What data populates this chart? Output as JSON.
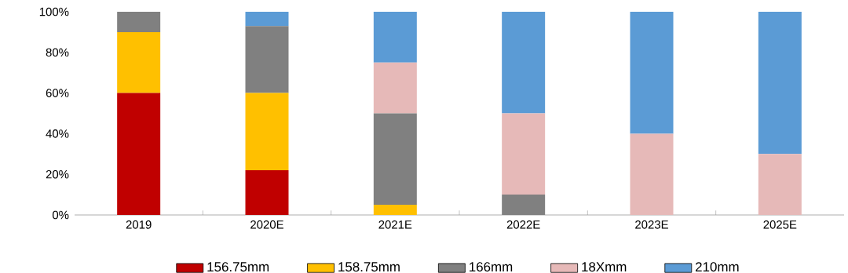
{
  "chart_data": {
    "type": "bar",
    "stacked": true,
    "legend": "bottom",
    "categories": [
      "2019",
      "2020E",
      "2021E",
      "2022E",
      "2023E",
      "2025E"
    ],
    "series": [
      {
        "name": "156.75mm",
        "color": "#c00000",
        "values": [
          60,
          22,
          0,
          0,
          0,
          0
        ]
      },
      {
        "name": "158.75mm",
        "color": "#ffc000",
        "values": [
          30,
          38,
          5,
          0,
          0,
          0
        ]
      },
      {
        "name": "166mm",
        "color": "#808080",
        "values": [
          10,
          33,
          45,
          10,
          0,
          0
        ]
      },
      {
        "name": "18Xmm",
        "color": "#e6b9b8",
        "values": [
          0,
          0,
          25,
          40,
          40,
          30
        ]
      },
      {
        "name": "210mm",
        "color": "#5b9bd5",
        "values": [
          0,
          7,
          25,
          50,
          60,
          70
        ]
      }
    ],
    "ylim": [
      0,
      100
    ],
    "yticks": [
      {
        "value": 0,
        "label": "0%"
      },
      {
        "value": 20,
        "label": "20%"
      },
      {
        "value": 40,
        "label": "40%"
      },
      {
        "value": 60,
        "label": "60%"
      },
      {
        "value": 80,
        "label": "80%"
      },
      {
        "value": 100,
        "label": "100%"
      }
    ]
  }
}
